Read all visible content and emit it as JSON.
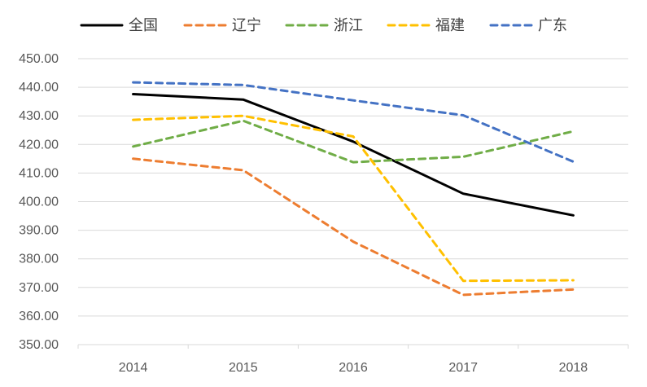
{
  "chart_data": {
    "type": "line",
    "title": "",
    "xlabel": "",
    "ylabel": "",
    "categories": [
      "2014",
      "2015",
      "2016",
      "2017",
      "2018"
    ],
    "ylim": [
      350,
      450
    ],
    "ytick_step": 10,
    "ytick_labels": [
      "350.00",
      "360.00",
      "370.00",
      "380.00",
      "390.00",
      "400.00",
      "410.00",
      "420.00",
      "430.00",
      "440.00",
      "450.00"
    ],
    "grid": true,
    "legend_position": "top",
    "series": [
      {
        "name": "全国",
        "color": "#000000",
        "dash": "solid",
        "values": [
          437.6,
          435.7,
          421.0,
          402.8,
          395.2
        ]
      },
      {
        "name": "辽宁",
        "color": "#ED7D31",
        "dash": "dashed",
        "values": [
          415.0,
          411.0,
          386.0,
          367.4,
          369.3
        ]
      },
      {
        "name": "浙江",
        "color": "#70AD47",
        "dash": "dashed",
        "values": [
          419.3,
          428.3,
          413.8,
          415.7,
          424.6
        ]
      },
      {
        "name": "福建",
        "color": "#FFC000",
        "dash": "dashed",
        "values": [
          428.6,
          430.0,
          422.8,
          372.3,
          372.5
        ]
      },
      {
        "name": "广东",
        "color": "#4472C4",
        "dash": "dashed",
        "values": [
          441.7,
          440.8,
          435.4,
          430.2,
          414.0
        ]
      }
    ]
  }
}
